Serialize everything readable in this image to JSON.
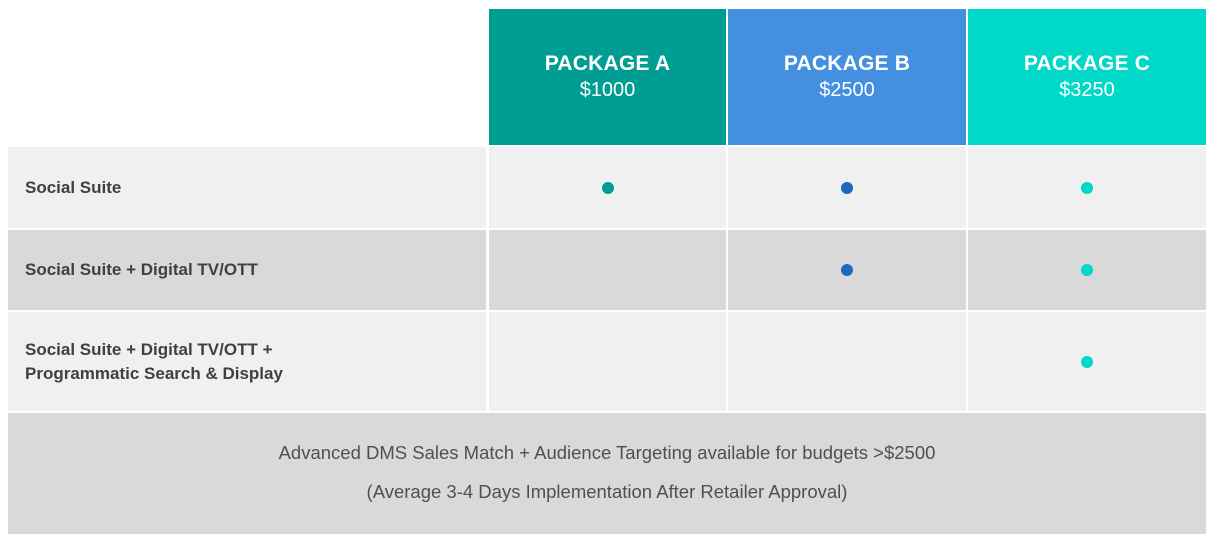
{
  "packages": [
    {
      "name": "PACKAGE A",
      "price": "$1000",
      "color": "#009e92",
      "dot_color": "#009e92"
    },
    {
      "name": "PACKAGE B",
      "price": "$2500",
      "color": "#448fe0",
      "dot_color": "#1e68c0"
    },
    {
      "name": "PACKAGE C",
      "price": "$3250",
      "color": "#00d8c8",
      "dot_color": "#00d8c8"
    }
  ],
  "rows": [
    {
      "label": "Social Suite",
      "included": [
        true,
        true,
        true
      ]
    },
    {
      "label": "Social Suite + Digital TV/OTT",
      "included": [
        false,
        true,
        true
      ]
    },
    {
      "label_line1": "Social Suite + Digital TV/OTT +",
      "label_line2": "Programmatic Search & Display",
      "included": [
        false,
        false,
        true
      ]
    }
  ],
  "footer": {
    "line1": "Advanced DMS Sales Match + Audience Targeting available for budgets >$2500",
    "line2": "(Average 3-4 Days Implementation After Retailer Approval)"
  }
}
